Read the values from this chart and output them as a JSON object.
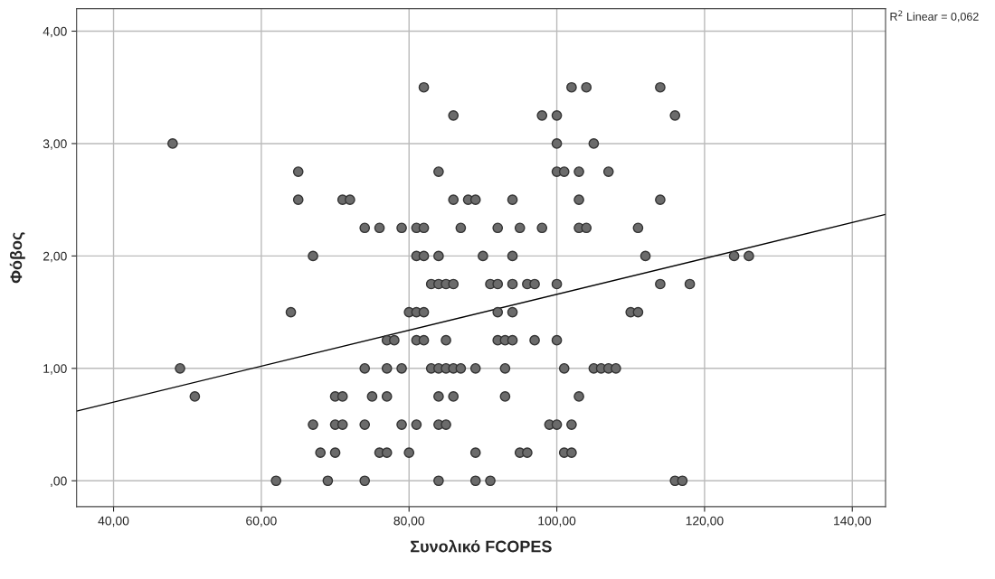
{
  "chart_data": {
    "type": "scatter",
    "xlabel": "Συνολικό FCOPES",
    "ylabel": "Φόβος",
    "annotations": [
      "R$^{2}$ Linear = 0,062"
    ],
    "xlim": [
      35,
      144.5
    ],
    "ylim": [
      -0.23,
      4.2
    ],
    "xticks": [
      {
        "value": 40,
        "label": "40,00"
      },
      {
        "value": 60,
        "label": "60,00"
      },
      {
        "value": 80,
        "label": "80,00"
      },
      {
        "value": 100,
        "label": "100,00"
      },
      {
        "value": 120,
        "label": "120,00"
      },
      {
        "value": 140,
        "label": "140,00"
      }
    ],
    "yticks": [
      {
        "value": 0,
        "label": ",00"
      },
      {
        "value": 1,
        "label": "1,00"
      },
      {
        "value": 2,
        "label": "2,00"
      },
      {
        "value": 3,
        "label": "3,00"
      },
      {
        "value": 4,
        "label": "4,00"
      }
    ],
    "grid": true,
    "series": [
      {
        "marker": "circle",
        "color": "#6b6b6b",
        "x": [
          82,
          102,
          104,
          114,
          86,
          98,
          100,
          116,
          48,
          100,
          105,
          65,
          84,
          100,
          101,
          103,
          107,
          65,
          71,
          72,
          86,
          88,
          89,
          94,
          103,
          114,
          74,
          76,
          79,
          81,
          82,
          87,
          92,
          95,
          98,
          103,
          104,
          111,
          67,
          81,
          82,
          84,
          90,
          94,
          112,
          124,
          126,
          83,
          84,
          85,
          86,
          91,
          92,
          94,
          96,
          97,
          100,
          114,
          118,
          64,
          80,
          81,
          82,
          92,
          94,
          110,
          111,
          77,
          78,
          81,
          82,
          85,
          92,
          93,
          94,
          97,
          100,
          49,
          74,
          77,
          79,
          83,
          84,
          85,
          86,
          87,
          89,
          93,
          101,
          105,
          106,
          107,
          108,
          51,
          70,
          71,
          75,
          77,
          84,
          86,
          93,
          103,
          67,
          70,
          71,
          74,
          79,
          81,
          84,
          85,
          99,
          100,
          102,
          68,
          70,
          76,
          77,
          80,
          89,
          95,
          96,
          101,
          102,
          62,
          69,
          74,
          84,
          89,
          91,
          116,
          117
        ],
        "values": [
          3.5,
          3.5,
          3.5,
          3.5,
          3.25,
          3.25,
          3.25,
          3.25,
          3,
          3,
          3,
          2.75,
          2.75,
          2.75,
          2.75,
          2.75,
          2.75,
          2.5,
          2.5,
          2.5,
          2.5,
          2.5,
          2.5,
          2.5,
          2.5,
          2.5,
          2.25,
          2.25,
          2.25,
          2.25,
          2.25,
          2.25,
          2.25,
          2.25,
          2.25,
          2.25,
          2.25,
          2.25,
          2,
          2,
          2,
          2,
          2,
          2,
          2,
          2,
          2,
          1.75,
          1.75,
          1.75,
          1.75,
          1.75,
          1.75,
          1.75,
          1.75,
          1.75,
          1.75,
          1.75,
          1.75,
          1.5,
          1.5,
          1.5,
          1.5,
          1.5,
          1.5,
          1.5,
          1.5,
          1.25,
          1.25,
          1.25,
          1.25,
          1.25,
          1.25,
          1.25,
          1.25,
          1.25,
          1.25,
          1,
          1,
          1,
          1,
          1,
          1,
          1,
          1,
          1,
          1,
          1,
          1,
          1,
          1,
          1,
          1,
          0.75,
          0.75,
          0.75,
          0.75,
          0.75,
          0.75,
          0.75,
          0.75,
          0.75,
          0.5,
          0.5,
          0.5,
          0.5,
          0.5,
          0.5,
          0.5,
          0.5,
          0.5,
          0.5,
          0.5,
          0.25,
          0.25,
          0.25,
          0.25,
          0.25,
          0.25,
          0.25,
          0.25,
          0.25,
          0.25,
          0,
          0,
          0,
          0,
          0,
          0,
          0,
          0
        ]
      },
      {
        "type": "line",
        "color": "#000000",
        "x": [
          35,
          144.5
        ],
        "values": [
          0.62,
          2.37
        ]
      }
    ]
  }
}
